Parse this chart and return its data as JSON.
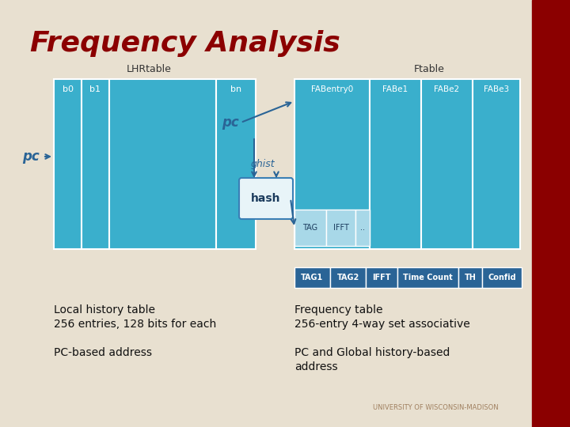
{
  "title": "Frequency Analysis",
  "title_color": "#8B0000",
  "bg_color": "#e8e0d0",
  "red_bar_color": "#8B0000",
  "lhr_label": "LHRtable",
  "ftable_label": "Ftable",
  "lhr_cols": [
    "b0",
    "b1",
    "",
    "bn"
  ],
  "ftable_cols": [
    "FABentry0",
    "FABe1",
    "FABe2",
    "FABe3"
  ],
  "table_color_main": "#3aafcc",
  "table_color_light": "#a8d8e8",
  "hash_box_color": "#e8f4f8",
  "hash_box_border": "#3a7fb5",
  "hash_text_color": "#1a3a5c",
  "row_labels_bottom": [
    "TAG",
    "IFFT",
    ".."
  ],
  "detail_row": [
    "TAG1",
    "TAG2",
    "IFFT",
    "Time Count",
    "TH",
    "Confid"
  ],
  "detail_row_color": "#2a6496",
  "text_left1": "Local history table",
  "text_left2": "256 entries, 128 bits for each",
  "text_left3": "PC-based address",
  "text_right1": "Frequency table",
  "text_right2": "256-entry 4-way set associative",
  "text_right3a": "PC and Global history-based",
  "text_right3b": "address",
  "footer": "UNIVERSITY OF WISCONSIN-MADISON",
  "footer_color": "#a08060",
  "arrow_color": "#2a6496",
  "pc_label_color": "#2a6496"
}
